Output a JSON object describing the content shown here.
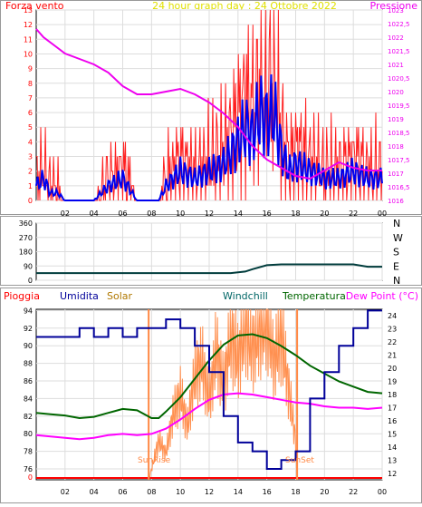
{
  "panel1": {
    "legend_left": "Forza vento",
    "title": "24 hour graph day : 24 Ottobre 2022",
    "legend_right": "Pressione",
    "left_ticks": [
      "0",
      "1",
      "2",
      "3",
      "4",
      "5",
      "6",
      "7",
      "8",
      "9",
      "10",
      "11",
      "12",
      "13"
    ],
    "right_ticks": [
      "1016",
      "1016,5",
      "1017",
      "1017,5",
      "1018",
      "1018,5",
      "1019",
      "1019,5",
      "1020",
      "1020,5",
      "1021",
      "1021,5",
      "1022",
      "1022,5",
      "1023"
    ],
    "x_ticks": [
      "02",
      "04",
      "06",
      "08",
      "10",
      "12",
      "14",
      "16",
      "18",
      "20",
      "22",
      "00"
    ],
    "colors": {
      "wind": "#ff2020",
      "gust": "#ff0000",
      "avg": "#0000ee",
      "pressure": "#ee00ee",
      "title": "#e0e000"
    }
  },
  "panel2": {
    "left_ticks": [
      "0",
      "90",
      "180",
      "270",
      "360"
    ],
    "right_labels": [
      "N",
      "W",
      "S",
      "E",
      "N"
    ],
    "x_ticks": [
      "02",
      "04",
      "06",
      "08",
      "10",
      "12",
      "14",
      "16",
      "18",
      "20",
      "22",
      "00"
    ],
    "color": "#003c3c"
  },
  "panel3": {
    "legend": {
      "pioggia": "Pioggia",
      "umidita": "Umidita",
      "solar": "Solar",
      "windchill": "Windchill",
      "temperatura": "Temperatura",
      "dewpoint": "Dew Point (°C)"
    },
    "left_ticks": [
      "0",
      "76",
      "78",
      "80",
      "82",
      "84",
      "86",
      "88",
      "90",
      "92",
      "94"
    ],
    "right_ticks": [
      "12",
      "13",
      "14",
      "15",
      "16",
      "17",
      "18",
      "19",
      "20",
      "21",
      "22",
      "23",
      "24"
    ],
    "x_ticks": [
      "02",
      "04",
      "06",
      "08",
      "10",
      "12",
      "14",
      "16",
      "18",
      "20",
      "22",
      "00"
    ],
    "sunrise": "SunRise",
    "sunset": "SunSet",
    "colors": {
      "pioggia": "#ff0000",
      "umidita": "#000099",
      "solar": "#b07800",
      "windchill": "#006666",
      "temperatura": "#006600",
      "dewpoint": "#ff00ff",
      "solar_line": "#ff9050",
      "sun_marker": "#ff8844"
    }
  },
  "chart_data": [
    {
      "type": "line",
      "title": "24 hour graph day : 24 Ottobre 2022",
      "x_range_hours": [
        0,
        24
      ],
      "ylim_left": [
        0,
        13
      ],
      "ylim_right": [
        1016,
        1023
      ],
      "series": [
        {
          "name": "Forza vento",
          "axis": "left",
          "x": [
            0,
            0.5,
            1,
            1.5,
            2,
            3,
            4,
            5,
            6,
            7,
            8,
            8.5,
            9,
            10,
            11,
            12,
            13,
            14,
            14.5,
            15,
            15.5,
            16,
            16.5,
            17,
            17.5,
            18,
            19,
            20,
            21,
            22,
            23,
            24
          ],
          "values": [
            1,
            1.5,
            0.5,
            0.5,
            0,
            0,
            0,
            1,
            1.5,
            0,
            0,
            0,
            1,
            2,
            1.5,
            2,
            2.5,
            4,
            5,
            4.5,
            6,
            5.5,
            6,
            3.5,
            2,
            2.5,
            2,
            1.5,
            1.5,
            2,
            1.5,
            1.5
          ]
        },
        {
          "name": "Pressione",
          "axis": "right",
          "x": [
            0,
            0.5,
            1,
            1.5,
            2,
            3,
            4,
            5,
            6,
            7,
            8,
            9,
            10,
            11,
            12,
            13,
            14,
            15,
            16,
            17,
            18,
            19,
            20,
            21,
            22,
            23,
            24
          ],
          "values": [
            1022.3,
            1022.0,
            1021.8,
            1021.6,
            1021.4,
            1021.2,
            1021.0,
            1020.7,
            1020.2,
            1019.9,
            1019.9,
            1020.0,
            1020.1,
            1019.9,
            1019.6,
            1019.2,
            1018.7,
            1018.0,
            1017.5,
            1017.2,
            1016.9,
            1016.8,
            1017.1,
            1017.4,
            1017.2,
            1017.1,
            1017.1
          ]
        }
      ]
    },
    {
      "type": "line",
      "ylim": [
        0,
        360
      ],
      "x_range_hours": [
        0,
        24
      ],
      "series": [
        {
          "name": "",
          "x": [
            0,
            2,
            4,
            6,
            8,
            10,
            12,
            13.5,
            14.5,
            15,
            16,
            17,
            18,
            20,
            22,
            23,
            24
          ],
          "values": [
            45,
            45,
            45,
            45,
            45,
            45,
            45,
            45,
            55,
            70,
            95,
            100,
            100,
            100,
            100,
            85,
            85
          ]
        }
      ]
    },
    {
      "type": "line",
      "x_range_hours": [
        0,
        24
      ],
      "ylim_left": [
        76,
        95
      ],
      "ylim_right": [
        11.5,
        24.5
      ],
      "series": [
        {
          "name": "Umidita",
          "axis": "left",
          "x": [
            0,
            0.5,
            2,
            3,
            4,
            5,
            6,
            7,
            8,
            9,
            10,
            11,
            12,
            13,
            14,
            15,
            16,
            17,
            18,
            19,
            20,
            21,
            22,
            23,
            24
          ],
          "values": [
            91,
            91,
            91,
            92,
            91,
            92,
            91,
            92,
            92,
            93,
            92,
            90,
            87,
            82,
            79,
            78,
            76,
            77,
            78,
            84,
            87,
            90,
            92,
            94,
            94
          ]
        },
        {
          "name": "Temperatura",
          "axis": "right",
          "x": [
            0,
            1,
            2,
            3,
            4,
            5,
            6,
            7,
            8,
            8.5,
            9,
            10,
            11,
            12,
            13,
            14,
            15,
            16,
            17,
            18,
            19,
            20,
            21,
            22,
            23,
            24
          ],
          "values": [
            16.6,
            16.5,
            16.4,
            16.2,
            16.3,
            16.6,
            16.9,
            16.8,
            16.2,
            16.2,
            16.7,
            17.8,
            19.2,
            20.6,
            21.8,
            22.5,
            22.6,
            22.3,
            21.7,
            21.0,
            20.2,
            19.6,
            19.0,
            18.6,
            18.2,
            18.1
          ]
        },
        {
          "name": "Dew Point (°C)",
          "axis": "right",
          "x": [
            0,
            1,
            2,
            3,
            4,
            5,
            6,
            7,
            8,
            9,
            10,
            11,
            12,
            13,
            14,
            15,
            16,
            17,
            18,
            19,
            20,
            21,
            22,
            23,
            24
          ],
          "values": [
            14.9,
            14.8,
            14.7,
            14.6,
            14.7,
            14.9,
            15.0,
            14.9,
            15.0,
            15.4,
            16.1,
            16.9,
            17.6,
            18.0,
            18.1,
            18.0,
            17.8,
            17.6,
            17.4,
            17.3,
            17.1,
            17.0,
            17.0,
            16.9,
            17.0
          ]
        },
        {
          "name": "Solar",
          "axis": "hidden",
          "x": [
            7.8,
            8,
            8.5,
            9,
            9.5,
            10,
            10.5,
            11,
            11.5,
            12,
            12.5,
            13,
            13.5,
            14,
            14.5,
            15,
            15.5,
            16,
            16.5,
            17,
            17.5,
            18,
            18.1
          ],
          "values": [
            0,
            80,
            300,
            200,
            500,
            650,
            400,
            800,
            900,
            600,
            1000,
            700,
            1100,
            900,
            1200,
            1000,
            1150,
            1250,
            900,
            1100,
            700,
            300,
            0
          ]
        }
      ],
      "annotations": [
        "SunRise",
        "SunSet"
      ]
    }
  ]
}
